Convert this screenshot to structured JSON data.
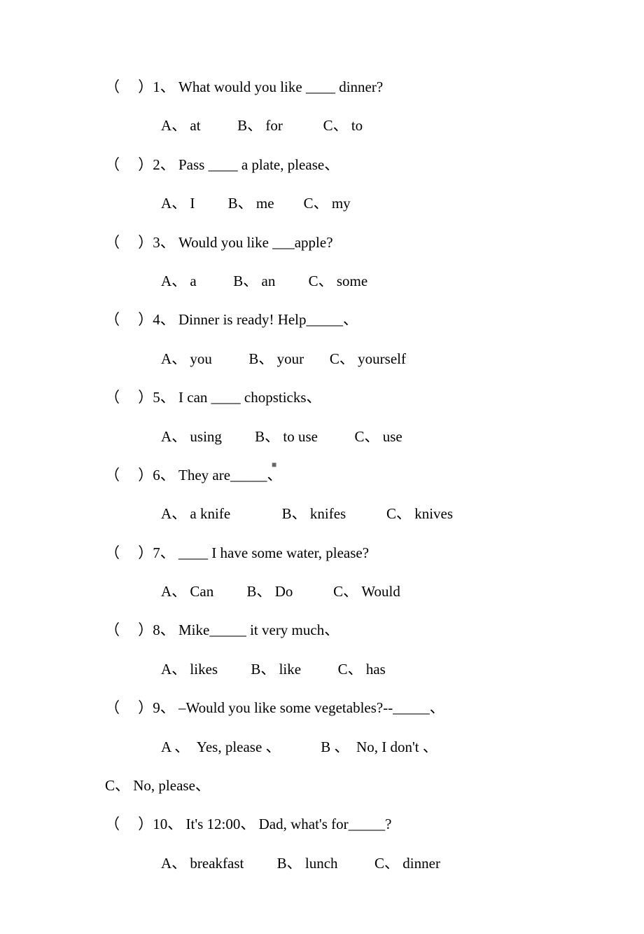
{
  "questions": [
    {
      "stem": "（     ）1、 What would you like ____ dinner?",
      "options": "A、 at          B、 for           C、 to"
    },
    {
      "stem": "（     ）2、 Pass ____ a plate, please、",
      "options": "A、 I         B、 me        C、 my"
    },
    {
      "stem": "（     ）3、 Would you like ___apple?",
      "options": "A、 a          B、 an         C、 some"
    },
    {
      "stem": "（     ）4、 Dinner is ready! Help_____、",
      "options": "A、 you          B、 your       C、 yourself"
    },
    {
      "stem": "（     ）5、 I can ____ chopsticks、",
      "options": "A、 using         B、 to use          C、 use"
    },
    {
      "stem": "（     ）6、 They are_____、",
      "options": "A、 a knife              B、 knifes           C、 knives"
    },
    {
      "stem": "（     ）7、 ____ I have some water, please?",
      "options": "A、 Can         B、 Do           C、 Would"
    },
    {
      "stem": "（     ）8、 Mike_____ it very much、",
      "options": "A、 likes         B、 like          C、 has"
    },
    {
      "stem": "（     ）9、 –Would you like some vegetables?--_____、",
      "options": "A 、  Yes, please 、           B 、  No, I don't 、",
      "extra": "C、 No, please、"
    },
    {
      "stem": "（     ）10、 It's 12:00、 Dad, what's for_____?",
      "options": "A、 breakfast         B、 lunch          C、 dinner"
    }
  ],
  "center_mark": "■"
}
